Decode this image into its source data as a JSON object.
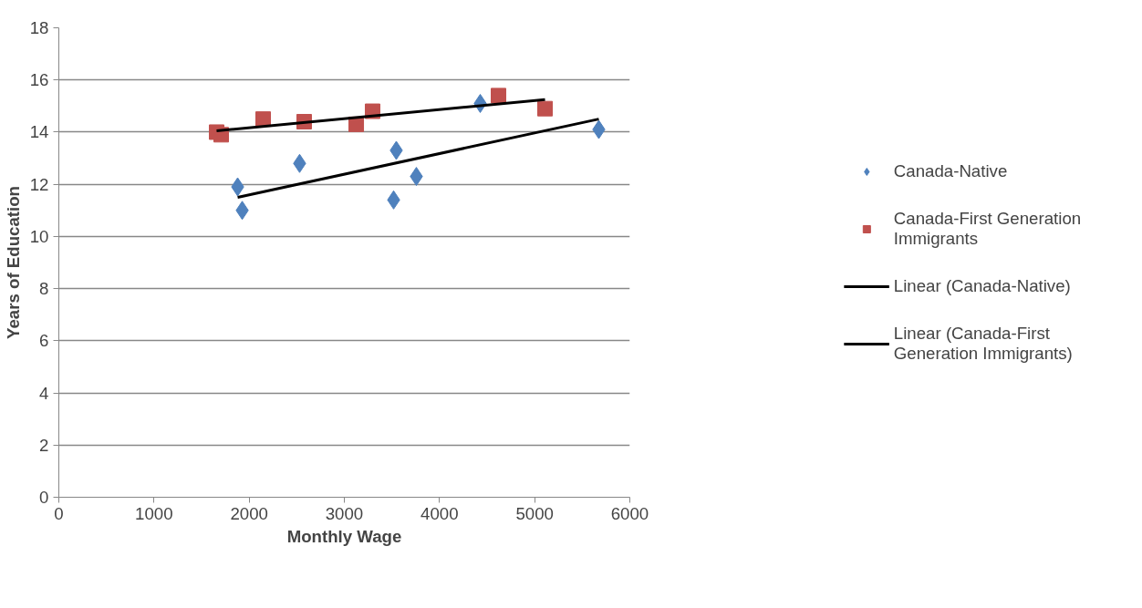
{
  "chart_data": {
    "type": "scatter",
    "xlabel": "Monthly Wage",
    "ylabel": "Years of Education",
    "xlim": [
      0,
      6000
    ],
    "xticks": [
      0,
      1000,
      2000,
      3000,
      4000,
      5000,
      6000
    ],
    "ylim": [
      0,
      18
    ],
    "yticks": [
      0,
      2,
      4,
      6,
      8,
      10,
      12,
      14,
      16,
      18
    ],
    "grid": "y",
    "legend": "right",
    "series": [
      {
        "name": "Canada-Native",
        "color": "#4f81bd",
        "marker": "diamond",
        "x": [
          1879,
          1927,
          2530,
          3518,
          3546,
          3757,
          4428,
          5674
        ],
        "values": [
          11.9,
          11.0,
          12.8,
          11.4,
          13.3,
          12.3,
          15.1,
          14.1
        ]
      },
      {
        "name": "Canada-First Generation Immigrants",
        "color": "#c0504d",
        "marker": "square",
        "x": [
          1658,
          1706,
          2147,
          2578,
          3125,
          3297,
          4620,
          5109
        ],
        "values": [
          14.0,
          13.9,
          14.5,
          14.4,
          14.3,
          14.8,
          15.4,
          14.9
        ]
      },
      {
        "name": "Linear (Canada-Native)",
        "type": "line",
        "color": "#000000",
        "x": [
          1879,
          5674
        ],
        "values": [
          11.5,
          14.5
        ]
      },
      {
        "name": "Linear (Canada-First Generation Immigrants)",
        "type": "line",
        "color": "#000000",
        "x": [
          1658,
          5109
        ],
        "values": [
          14.05,
          15.25
        ]
      }
    ]
  }
}
